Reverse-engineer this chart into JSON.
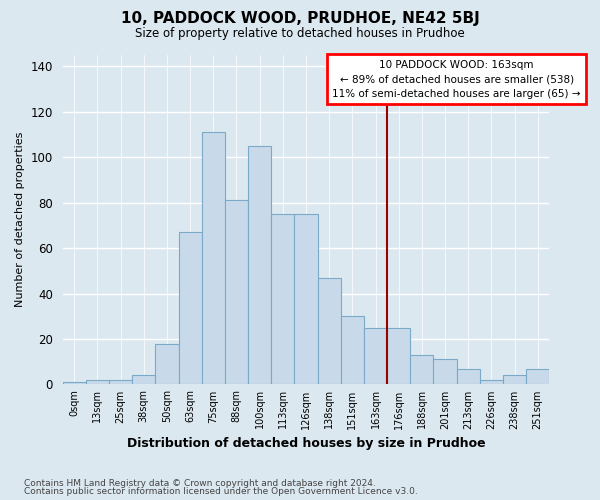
{
  "title": "10, PADDOCK WOOD, PRUDHOE, NE42 5BJ",
  "subtitle": "Size of property relative to detached houses in Prudhoe",
  "xlabel": "Distribution of detached houses by size in Prudhoe",
  "ylabel": "Number of detached properties",
  "bar_color": "#c8daea",
  "bar_edge_color": "#7aaac8",
  "marker_color": "#990000",
  "categories": [
    "0sqm",
    "13sqm",
    "25sqm",
    "38sqm",
    "50sqm",
    "63sqm",
    "75sqm",
    "88sqm",
    "100sqm",
    "113sqm",
    "126sqm",
    "138sqm",
    "151sqm",
    "163sqm",
    "176sqm",
    "188sqm",
    "201sqm",
    "213sqm",
    "226sqm",
    "238sqm",
    "251sqm"
  ],
  "values": [
    1,
    2,
    2,
    4,
    18,
    67,
    111,
    81,
    105,
    75,
    75,
    47,
    30,
    25,
    25,
    13,
    11,
    7,
    2,
    4,
    7
  ],
  "highlight_index": 13,
  "annotation_title": "10 PADDOCK WOOD: 163sqm",
  "annotation_line1": "← 89% of detached houses are smaller (538)",
  "annotation_line2": "11% of semi-detached houses are larger (65) →",
  "footer1": "Contains HM Land Registry data © Crown copyright and database right 2024.",
  "footer2": "Contains public sector information licensed under the Open Government Licence v3.0.",
  "ylim": [
    0,
    145
  ],
  "yticks": [
    0,
    20,
    40,
    60,
    80,
    100,
    120,
    140
  ],
  "bg_color": "#dce8f0",
  "plot_bg_color": "#dce8f0"
}
